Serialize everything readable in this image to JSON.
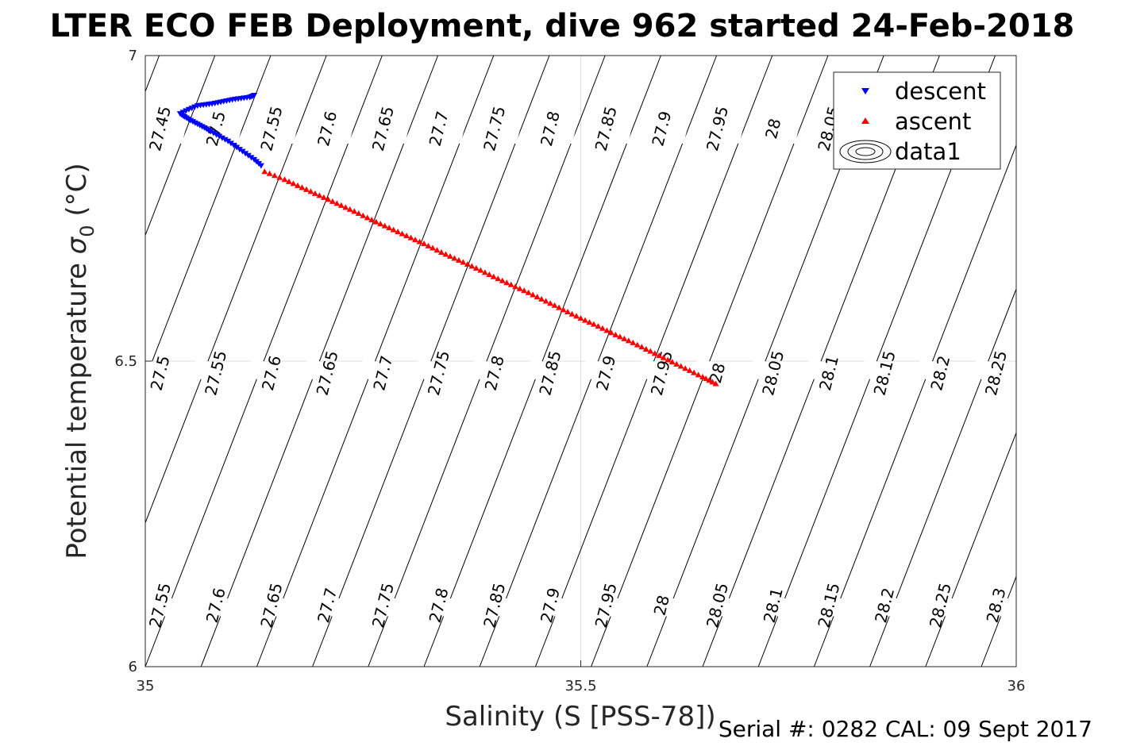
{
  "title": "LTER ECO FEB Deployment, dive 962 started 24-Feb-2018",
  "footer": "Serial #: 0282  CAL: 09 Sept 2017",
  "chart_data": {
    "type": "scatter",
    "xlabel": "Salinity (S [PSS-78])",
    "ylabel_main": "Potential temperature ",
    "ylabel_sym": "σ",
    "ylabel_sub": "0",
    "ylabel_unit": " (°C)",
    "xlim": [
      35,
      36
    ],
    "ylim": [
      6,
      7
    ],
    "xticks": [
      "35",
      "35.5",
      "36"
    ],
    "yticks": [
      "6",
      "6.5",
      "7"
    ],
    "grid": true,
    "legend_position": "top-right",
    "legend": [
      "descent",
      "ascent",
      "data1"
    ],
    "colors": {
      "descent": "#0000ff",
      "ascent": "#ff0000",
      "contour": "#000000",
      "grid": "#dddddd"
    },
    "series": [
      {
        "name": "descent",
        "marker": "triangle-down",
        "color": "#0000ff",
        "x": [
          35.133,
          35.125,
          35.115,
          35.105,
          35.095,
          35.085,
          35.075,
          35.068,
          35.06,
          35.052,
          35.045,
          35.04,
          35.05,
          35.06,
          35.07,
          35.08,
          35.09,
          35.1,
          35.11,
          35.12,
          35.125
        ],
        "y": [
          6.82,
          6.83,
          6.84,
          6.85,
          6.86,
          6.868,
          6.876,
          6.882,
          6.888,
          6.894,
          6.9,
          6.905,
          6.912,
          6.918,
          6.92,
          6.922,
          6.925,
          6.928,
          6.93,
          6.932,
          6.935
        ]
      },
      {
        "name": "ascent",
        "marker": "triangle-up",
        "color": "#ff0000",
        "x": [
          35.137,
          35.16,
          35.18,
          35.2,
          35.22,
          35.24,
          35.26,
          35.28,
          35.3,
          35.32,
          35.34,
          35.36,
          35.38,
          35.4,
          35.42,
          35.44,
          35.46,
          35.48,
          35.5,
          35.52,
          35.54,
          35.56,
          35.58,
          35.6,
          35.62,
          35.64,
          35.655
        ],
        "y": [
          6.81,
          6.797,
          6.784,
          6.771,
          6.758,
          6.745,
          6.731,
          6.718,
          6.705,
          6.692,
          6.678,
          6.665,
          6.652,
          6.638,
          6.625,
          6.612,
          6.598,
          6.584,
          6.57,
          6.557,
          6.543,
          6.53,
          6.516,
          6.502,
          6.488,
          6.474,
          6.463
        ]
      }
    ],
    "contour_labels": [
      "27.45",
      "27.5",
      "27.55",
      "27.6",
      "27.65",
      "27.7",
      "27.75",
      "27.8",
      "27.85",
      "27.9",
      "27.95",
      "28",
      "28.05",
      "28.1",
      "28.15",
      "28.2",
      "28.25",
      "28.3"
    ],
    "label_rows": [
      {
        "y": 6.88,
        "labels": [
          "27.45",
          "27.5",
          "27.55",
          "27.6",
          "27.65",
          "27.7",
          "27.75",
          "27.8",
          "27.85",
          "27.9",
          "27.95",
          "28",
          "28.05"
        ]
      },
      {
        "y": 6.48,
        "labels": [
          "27.5",
          "27.55",
          "27.6",
          "27.65",
          "27.7",
          "27.75",
          "27.8",
          "27.85",
          "27.9",
          "27.95",
          "28",
          "28.05",
          "28.1",
          "28.15",
          "28.2",
          "28.25"
        ]
      },
      {
        "y": 6.1,
        "labels": [
          "27.55",
          "27.6",
          "27.65",
          "27.7",
          "27.75",
          "27.8",
          "27.85",
          "27.9",
          "27.95",
          "28",
          "28.05",
          "28.1",
          "28.15",
          "28.2",
          "28.25",
          "28.3"
        ]
      }
    ]
  }
}
